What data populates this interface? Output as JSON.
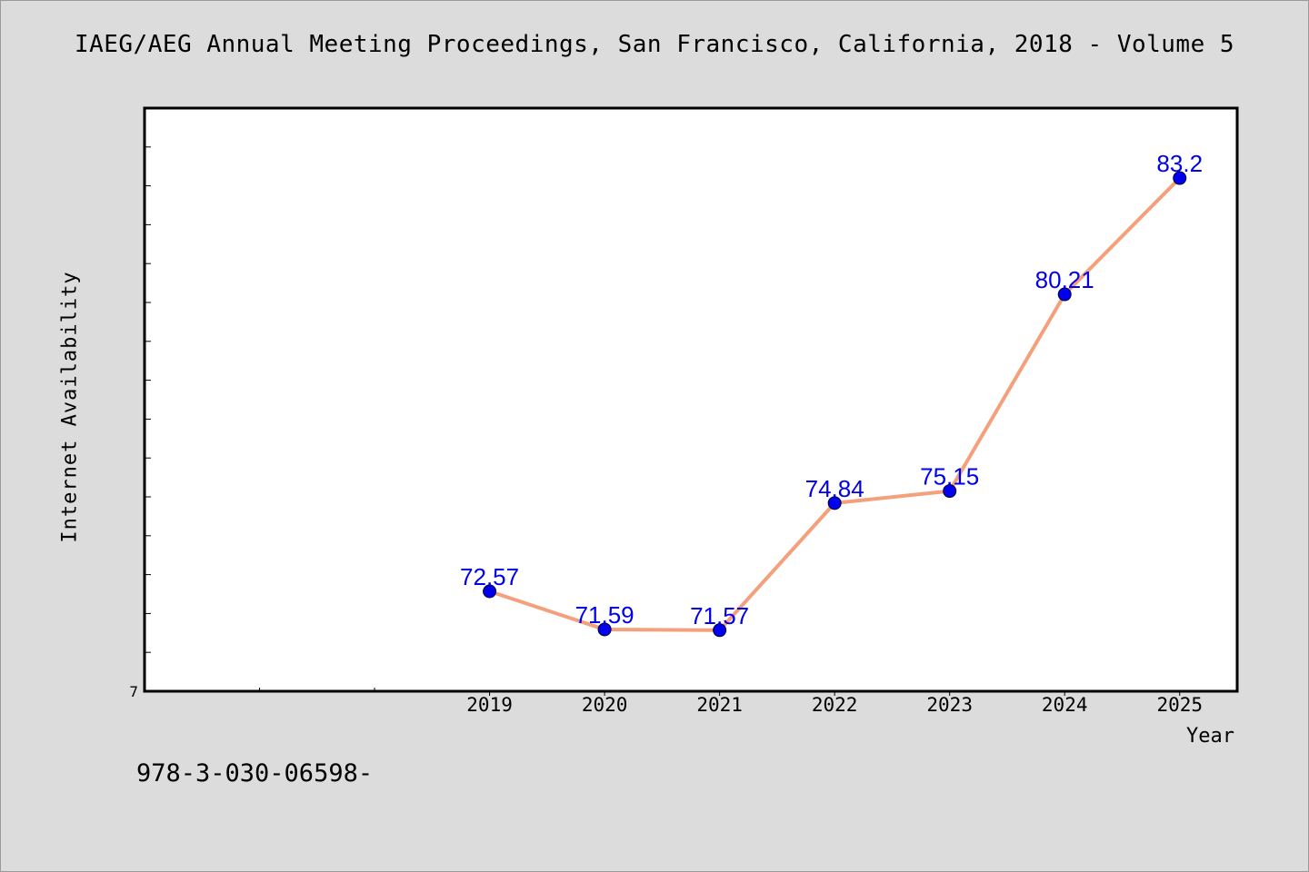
{
  "page": {
    "title": "IAEG/AEG Annual Meeting Proceedings, San Francisco, California, 2018 - Volume 5",
    "footer": "978-3-030-06598-"
  },
  "chart_data": {
    "type": "line",
    "title": "IAEG/AEG Annual Meeting Proceedings, San Francisco, California, 2018 - Volume 5",
    "xlabel": "Year",
    "ylabel": "Internet Availability",
    "x": [
      2019,
      2020,
      2021,
      2022,
      2023,
      2024,
      2025
    ],
    "xticklabels": [
      "2019",
      "2020",
      "2021",
      "2022",
      "2023",
      "2024",
      "2025"
    ],
    "yticklabels": [
      "7"
    ],
    "series": [
      {
        "values": [
          72.57,
          71.59,
          71.57,
          74.84,
          75.15,
          80.21,
          83.2
        ],
        "labels": [
          "72.57",
          "71.59",
          "71.57",
          "74.84",
          "75.15",
          "80.21",
          "83.2"
        ],
        "line_color": "#f4a07c",
        "marker_color": "#0000ee",
        "label_color": "#0000ee"
      }
    ],
    "xlim": [
      2016,
      2025.5
    ],
    "ylim": [
      70,
      85
    ],
    "grid": false,
    "legend": "none"
  }
}
